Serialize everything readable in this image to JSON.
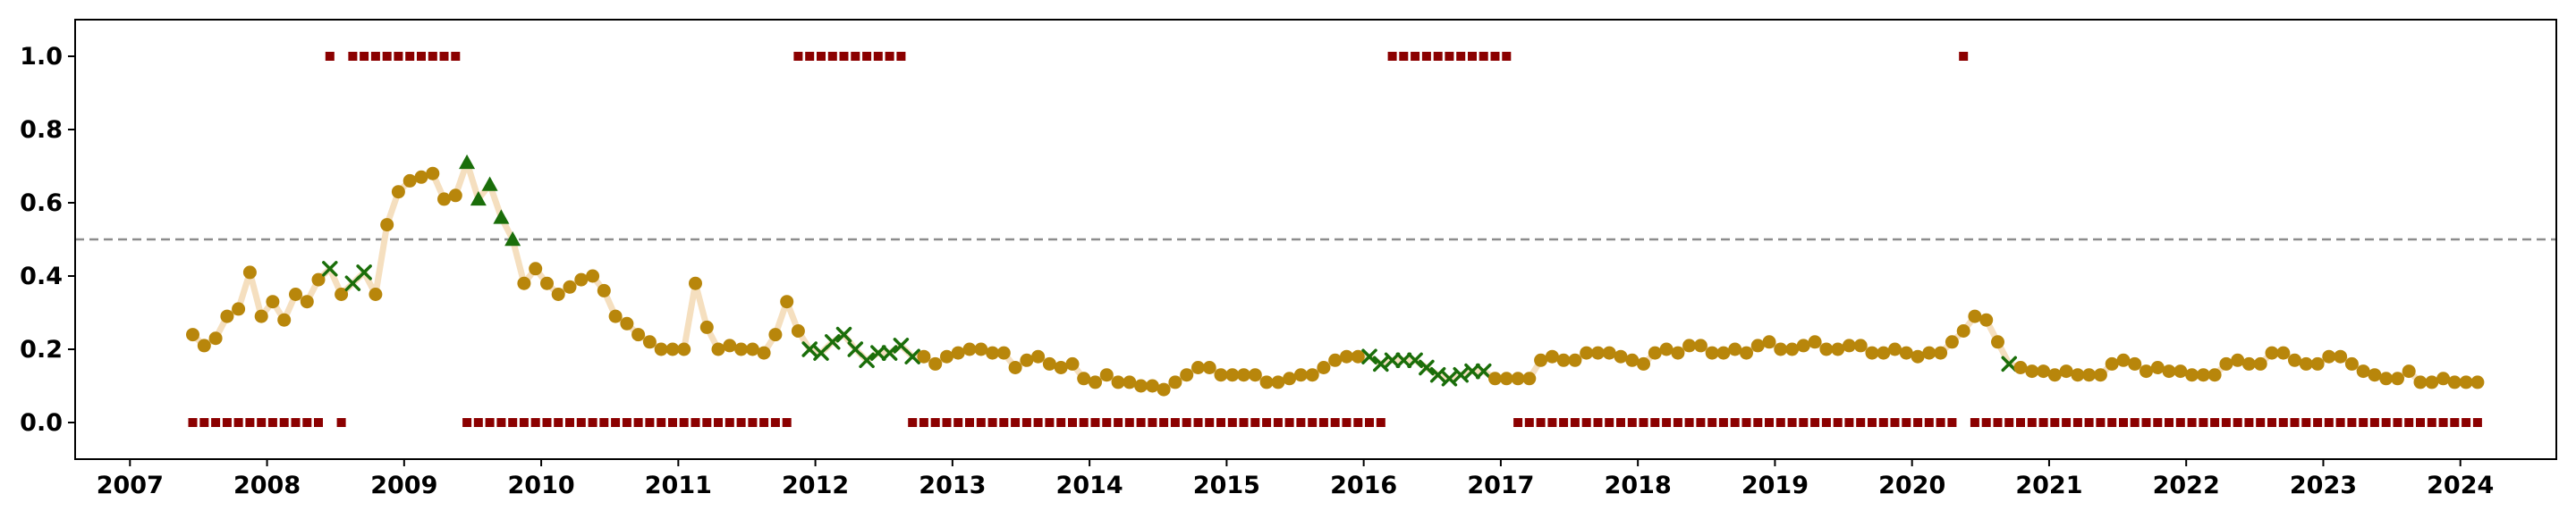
{
  "chart_data": {
    "type": "scatter",
    "title": "",
    "xlabel": "",
    "ylabel": "",
    "xlim": [
      2006.6,
      2024.7
    ],
    "ylim": [
      -0.1,
      1.1
    ],
    "grid": false,
    "x_ticks": [
      2007,
      2008,
      2009,
      2010,
      2011,
      2012,
      2013,
      2014,
      2015,
      2016,
      2017,
      2018,
      2019,
      2020,
      2021,
      2022,
      2023,
      2024
    ],
    "y_ticks": [
      0.0,
      0.2,
      0.4,
      0.6,
      0.8,
      1.0
    ],
    "threshold": 0.5,
    "start_year": 2007,
    "start_month": 6,
    "series_values": [
      0.24,
      0.21,
      0.23,
      0.29,
      0.31,
      0.41,
      0.29,
      0.33,
      0.28,
      0.35,
      0.33,
      0.39,
      0.42,
      0.35,
      0.38,
      0.41,
      0.35,
      0.54,
      0.63,
      0.66,
      0.67,
      0.68,
      0.61,
      0.62,
      0.71,
      0.61,
      0.65,
      0.56,
      0.5,
      0.38,
      0.42,
      0.38,
      0.35,
      0.37,
      0.39,
      0.4,
      0.36,
      0.29,
      0.27,
      0.24,
      0.22,
      0.2,
      0.2,
      0.2,
      0.38,
      0.26,
      0.2,
      0.21,
      0.2,
      0.2,
      0.19,
      0.24,
      0.33,
      0.25,
      0.2,
      0.19,
      0.22,
      0.24,
      0.2,
      0.17,
      0.19,
      0.19,
      0.21,
      0.18,
      0.18,
      0.16,
      0.18,
      0.19,
      0.2,
      0.2,
      0.19,
      0.19,
      0.15,
      0.17,
      0.18,
      0.16,
      0.15,
      0.16,
      0.12,
      0.11,
      0.13,
      0.11,
      0.11,
      0.1,
      0.1,
      0.09,
      0.11,
      0.13,
      0.15,
      0.15,
      0.13,
      0.13,
      0.13,
      0.13,
      0.11,
      0.11,
      0.12,
      0.13,
      0.13,
      0.15,
      0.17,
      0.18,
      0.18,
      0.18,
      0.16,
      0.17,
      0.17,
      0.17,
      0.15,
      0.13,
      0.12,
      0.13,
      0.14,
      0.14,
      0.12,
      0.12,
      0.12,
      0.12,
      0.17,
      0.18,
      0.17,
      0.17,
      0.19,
      0.19,
      0.19,
      0.18,
      0.17,
      0.16,
      0.19,
      0.2,
      0.19,
      0.21,
      0.21,
      0.19,
      0.19,
      0.2,
      0.19,
      0.21,
      0.22,
      0.2,
      0.2,
      0.21,
      0.22,
      0.2,
      0.2,
      0.21,
      0.21,
      0.19,
      0.19,
      0.2,
      0.19,
      0.18,
      0.19,
      0.19,
      0.22,
      0.25,
      0.29,
      0.28,
      0.22,
      0.16,
      0.15,
      0.14,
      0.14,
      0.13,
      0.14,
      0.13,
      0.13,
      0.13,
      0.16,
      0.17,
      0.16,
      0.14,
      0.15,
      0.14,
      0.14,
      0.13,
      0.13,
      0.13,
      0.16,
      0.17,
      0.16,
      0.16,
      0.19,
      0.19,
      0.17,
      0.16,
      0.16,
      0.18,
      0.18,
      0.16,
      0.14,
      0.13,
      0.12,
      0.12,
      0.14,
      0.11,
      0.11,
      0.12,
      0.11,
      0.11,
      0.11
    ],
    "series_markers": "ooooooooooooxoxxoooooooo^^^^^oooooooooooooooooooooooooxxxxxxxxxxoooooooooooooooooooooooooooooooooooooooxxxxxxxxxxxoooooooooooooooooooooooooooooooooooooooooooooxooooooooooooooooooooooooooooooooooooooooooooooooooooxxxxxxxxxxxxxxooo",
    "indicator_values": "000000000000101111111111000000000000000000000000000001111111111000000000000000000000000000000000000000000111111111110000000000000000000000000000000000000001000000000000000000000000000000000000000000000000000001111111111111000",
    "colors": {
      "circle": "#b8860b",
      "triangle": "#1a6e0a",
      "cross": "#1a6e0a",
      "indicator": "#8b0000",
      "line": "#f5dfbf",
      "threshold": "#8c8c8c",
      "axes": "#000000"
    }
  }
}
